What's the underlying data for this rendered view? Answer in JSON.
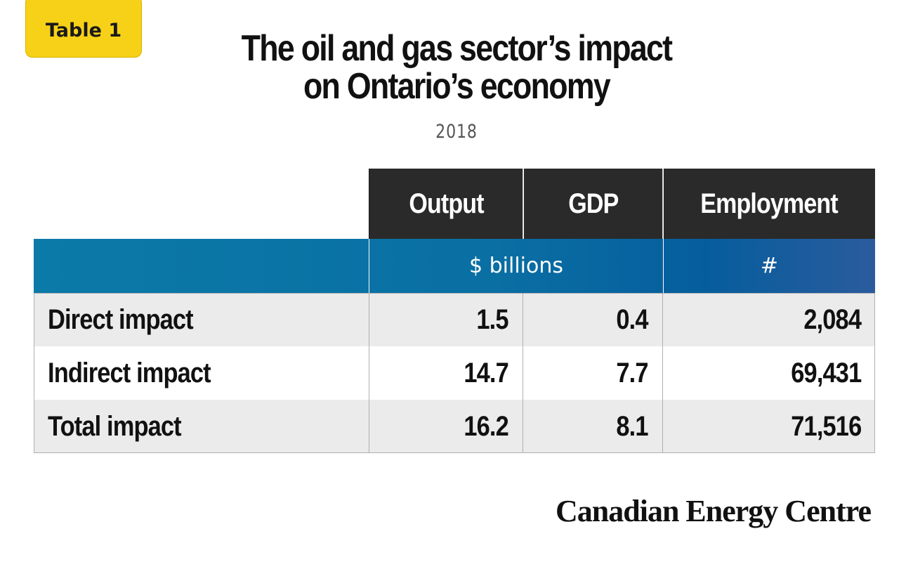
{
  "badge": "Table 1",
  "title_line1": "The oil and gas sector’s impact",
  "title_line2": "on Ontario’s economy",
  "subtitle": "2018",
  "table": {
    "columns": [
      "Output",
      "GDP",
      "Employment"
    ],
    "units": [
      "$ billions",
      "#"
    ],
    "rows": [
      {
        "label": "Direct impact",
        "output": "1.5",
        "gdp": "0.4",
        "employment": "2,084"
      },
      {
        "label": "Indirect impact",
        "output": "14.7",
        "gdp": "7.7",
        "employment": "69,431"
      },
      {
        "label": "Total impact",
        "output": "16.2",
        "gdp": "8.1",
        "employment": "71,516"
      }
    ]
  },
  "logo": "Canadian Energy Centre",
  "colors": {
    "badge": "#f7d117",
    "header": "#2a2a2a",
    "units_band": "#0a6fa3",
    "row_shade": "#ebebeb"
  }
}
